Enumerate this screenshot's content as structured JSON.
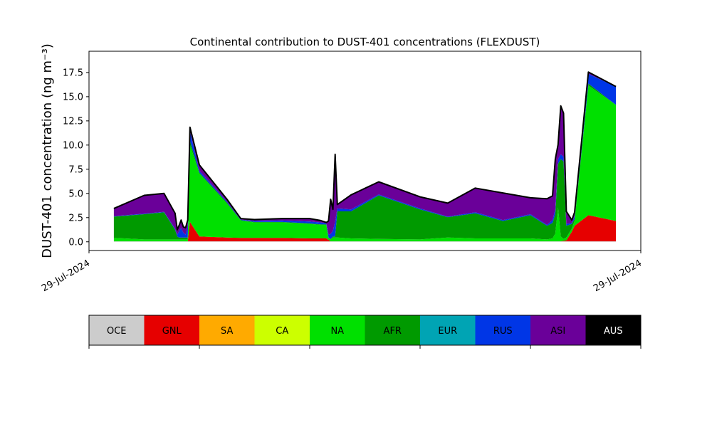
{
  "chart_data": {
    "type": "area",
    "stacked": true,
    "title": "Continental contribution to DUST-401 concentrations (FLEXDUST)",
    "xlabel": "",
    "ylabel": "DUST-401 concentration (ng m⁻³)",
    "xlim": [
      0,
      1
    ],
    "ylim": [
      -0.9,
      19.7
    ],
    "x_tick_labels": [
      "29-Jul-2024",
      "29-Jul-2024"
    ],
    "y_ticks": [
      0.0,
      2.5,
      5.0,
      7.5,
      10.0,
      12.5,
      15.0,
      17.5
    ],
    "y_tick_labels": [
      "0.0",
      "2.5",
      "5.0",
      "7.5",
      "10.0",
      "12.5",
      "15.0",
      "17.5"
    ],
    "grid": false,
    "x": [
      0.045,
      0.1,
      0.136,
      0.156,
      0.16,
      0.163,
      0.167,
      0.171,
      0.175,
      0.179,
      0.183,
      0.2,
      0.25,
      0.275,
      0.3,
      0.35,
      0.4,
      0.42,
      0.43,
      0.434,
      0.438,
      0.442,
      0.446,
      0.45,
      0.475,
      0.525,
      0.6,
      0.65,
      0.7,
      0.75,
      0.8,
      0.83,
      0.84,
      0.845,
      0.85,
      0.855,
      0.86,
      0.865,
      0.875,
      0.88,
      0.905,
      0.955
    ],
    "series": [
      {
        "name": "OCE",
        "color": "#cccccc",
        "values": [
          0.05,
          0.05,
          0.05,
          0.05,
          0.05,
          0.05,
          0.05,
          0.05,
          0.05,
          0.05,
          0.05,
          0.05,
          0.05,
          0.05,
          0.05,
          0.05,
          0.05,
          0.05,
          0.05,
          0.05,
          0.05,
          0.05,
          0.05,
          0.05,
          0.05,
          0.05,
          0.05,
          0.05,
          0.05,
          0.05,
          0.05,
          0.05,
          0.05,
          0.05,
          0.05,
          0.05,
          0.05,
          0.05,
          0.05,
          0.05,
          0.05,
          0.05
        ]
      },
      {
        "name": "GNL",
        "color": "#e60000",
        "values": [
          0,
          0,
          0,
          0,
          0,
          0,
          0,
          0,
          0,
          0,
          2.0,
          0.5,
          0.4,
          0.35,
          0.35,
          0.35,
          0.3,
          0.3,
          0.3,
          0.15,
          0,
          0,
          0,
          0,
          0,
          0,
          0,
          0,
          0,
          0,
          0,
          0,
          0,
          0,
          0,
          0,
          0.05,
          0.1,
          1.0,
          1.6,
          2.7,
          2.1
        ]
      },
      {
        "name": "SA",
        "color": "#ffaa00",
        "values": [
          0,
          0,
          0,
          0,
          0,
          0,
          0,
          0,
          0,
          0,
          0,
          0,
          0,
          0,
          0,
          0,
          0,
          0,
          0,
          0,
          0,
          0,
          0,
          0,
          0,
          0,
          0,
          0,
          0,
          0,
          0,
          0,
          0,
          0,
          0,
          0,
          0,
          0,
          0,
          0,
          0,
          0
        ]
      },
      {
        "name": "CA",
        "color": "#ccff00",
        "values": [
          0,
          0,
          0,
          0,
          0,
          0,
          0,
          0,
          0,
          0,
          0,
          0,
          0,
          0,
          0,
          0,
          0,
          0,
          0,
          0,
          0,
          0,
          0,
          0,
          0,
          0,
          0,
          0,
          0,
          0,
          0,
          0,
          0,
          0,
          0,
          0,
          0,
          0,
          0,
          0,
          0,
          0
        ]
      },
      {
        "name": "NA",
        "color": "#00e000",
        "values": [
          0.35,
          0.2,
          0.2,
          0.2,
          0.2,
          0.2,
          0.2,
          0.2,
          0.2,
          0.2,
          8.0,
          6.5,
          3.5,
          1.8,
          1.6,
          1.6,
          1.5,
          1.4,
          1.4,
          0.2,
          0.2,
          0.4,
          0.4,
          0.4,
          0.3,
          0.25,
          0.2,
          0.4,
          0.3,
          0.3,
          0.3,
          0.2,
          0.3,
          0.8,
          3.5,
          0.5,
          0.2,
          0.3,
          0.3,
          0.5,
          13.4,
          12.0
        ]
      },
      {
        "name": "AFR",
        "color": "#009a00",
        "values": [
          2.2,
          2.6,
          2.8,
          1.0,
          0.3,
          0.2,
          0.2,
          0.2,
          0.2,
          0.2,
          0.4,
          0.1,
          0.1,
          0.05,
          0.05,
          0.05,
          0.05,
          0.05,
          0.05,
          0.05,
          0.05,
          0.1,
          0.1,
          2.7,
          2.8,
          4.5,
          3.1,
          2.1,
          2.6,
          1.8,
          2.4,
          1.4,
          1.6,
          2.0,
          4.5,
          8.0,
          8.0,
          1.2,
          0.5,
          0.2,
          0.2,
          0.0
        ]
      },
      {
        "name": "EUR",
        "color": "#00a4b4",
        "values": [
          0,
          0,
          0,
          0,
          0,
          0,
          0,
          0,
          0,
          0,
          0,
          0,
          0,
          0,
          0,
          0,
          0,
          0,
          0,
          0,
          0,
          0,
          0,
          0,
          0,
          0,
          0,
          0,
          0,
          0,
          0,
          0,
          0,
          0,
          0,
          0,
          0,
          0,
          0,
          0,
          0,
          0
        ]
      },
      {
        "name": "RUS",
        "color": "#0036e6",
        "values": [
          0.05,
          0.05,
          0.05,
          0.1,
          0.2,
          0.6,
          1.0,
          0.5,
          0.3,
          1.2,
          1.0,
          0.2,
          0.1,
          0.05,
          0.1,
          0.15,
          0.2,
          0.2,
          0.1,
          0.3,
          0.5,
          0.6,
          1.5,
          0.3,
          0.2,
          0.1,
          0.1,
          0.05,
          0.1,
          0.1,
          0.1,
          0.1,
          0.3,
          0.5,
          0.5,
          0.5,
          0.5,
          0.2,
          0.1,
          0.3,
          1.0,
          1.9
        ]
      },
      {
        "name": "ASI",
        "color": "#6a0099",
        "values": [
          0.8,
          1.9,
          1.9,
          1.6,
          0.5,
          0.6,
          0.8,
          0.6,
          0.7,
          0.6,
          0.4,
          0.6,
          0.25,
          0.1,
          0.15,
          0.2,
          0.3,
          0.2,
          0.1,
          1.4,
          3.6,
          2.2,
          7.0,
          0.4,
          1.5,
          1.3,
          1.2,
          1.4,
          2.5,
          2.8,
          1.7,
          2.7,
          2.5,
          5.2,
          1.5,
          5.0,
          4.5,
          1.3,
          0.3,
          0.4,
          0.2,
          0.0
        ]
      },
      {
        "name": "AUS",
        "color": "#000000",
        "values": [
          0,
          0,
          0,
          0,
          0,
          0,
          0,
          0,
          0,
          0,
          0,
          0,
          0,
          0,
          0,
          0,
          0,
          0,
          0,
          0,
          0,
          0,
          0,
          0,
          0,
          0,
          0,
          0,
          0,
          0,
          0,
          0,
          0,
          0,
          0,
          0,
          0,
          0,
          0,
          0,
          0,
          0
        ]
      }
    ]
  }
}
